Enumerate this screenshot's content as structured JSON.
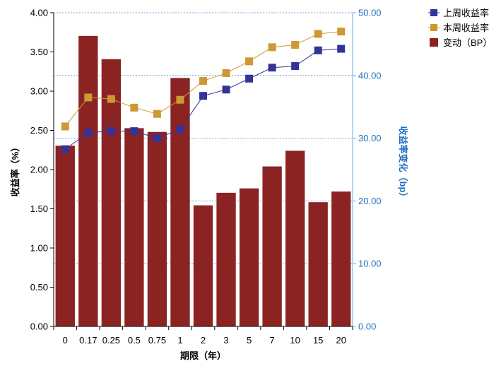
{
  "chart_data": {
    "type": "bar",
    "categories": [
      "0",
      "0.17",
      "0.25",
      "0.5",
      "0.75",
      "1",
      "2",
      "3",
      "5",
      "7",
      "10",
      "15",
      "20"
    ],
    "xlabel": "期限（年）",
    "ylabel": "收益率（%）",
    "y2label": "收益率变化（bp）",
    "ylim": [
      0,
      4
    ],
    "y2lim": [
      0,
      50
    ],
    "yticks": [
      "0.00",
      "0.50",
      "1.00",
      "1.50",
      "2.00",
      "2.50",
      "3.00",
      "3.50",
      "4.00"
    ],
    "y2ticks": [
      "0.00",
      "10.00",
      "20.00",
      "30.00",
      "40.00",
      "50.00"
    ],
    "series": [
      {
        "name": "上周收益率",
        "type": "line",
        "axis": "left",
        "color": "#333399",
        "values": [
          2.26,
          2.47,
          2.49,
          2.49,
          2.4,
          2.51,
          2.94,
          3.02,
          3.16,
          3.3,
          3.32,
          3.52,
          3.54
        ]
      },
      {
        "name": "本周收益率",
        "type": "line",
        "axis": "left",
        "color": "#cc9933",
        "values": [
          2.55,
          2.92,
          2.9,
          2.79,
          2.71,
          2.89,
          3.13,
          3.23,
          3.38,
          3.56,
          3.59,
          3.73,
          3.76
        ]
      },
      {
        "name": "变动（BP）",
        "type": "bar",
        "axis": "right",
        "color": "#8b2323",
        "values": [
          28.8,
          46.3,
          42.6,
          31.6,
          31.0,
          39.6,
          19.3,
          21.3,
          22.0,
          25.5,
          28.0,
          19.8,
          21.5
        ]
      }
    ],
    "legend_position": "top-right",
    "grid": "right-axis dotted"
  }
}
